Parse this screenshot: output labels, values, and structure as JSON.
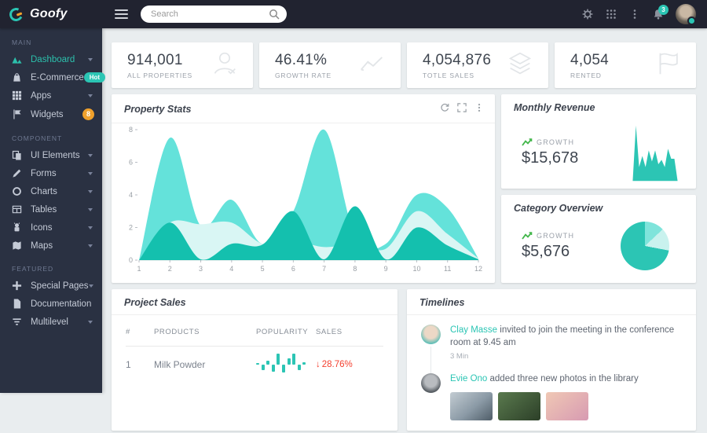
{
  "topbar": {
    "logo": "Goofy",
    "search_placeholder": "Search",
    "notification_count": "3"
  },
  "sidebar": {
    "sections": [
      {
        "label": "MAIN",
        "items": [
          {
            "label": "Dashboard",
            "icon": "chart",
            "active": true,
            "chevron": true
          },
          {
            "label": "E-Commerce",
            "icon": "bag",
            "badge": "Hot",
            "badge_type": "pill"
          },
          {
            "label": "Apps",
            "icon": "grid",
            "chevron": true
          },
          {
            "label": "Widgets",
            "icon": "flag",
            "badge": "8",
            "badge_type": "circle"
          }
        ]
      },
      {
        "label": "COMPONENT",
        "items": [
          {
            "label": "UI Elements",
            "icon": "copy",
            "chevron": true
          },
          {
            "label": "Forms",
            "icon": "pencil",
            "chevron": true
          },
          {
            "label": "Charts",
            "icon": "circle",
            "chevron": true
          },
          {
            "label": "Tables",
            "icon": "table",
            "chevron": true
          },
          {
            "label": "Icons",
            "icon": "robot",
            "chevron": true
          },
          {
            "label": "Maps",
            "icon": "map",
            "chevron": true
          }
        ]
      },
      {
        "label": "FEATURED",
        "items": [
          {
            "label": "Special Pages",
            "icon": "plus",
            "chevron": true
          },
          {
            "label": "Documentation",
            "icon": "doc"
          },
          {
            "label": "Multilevel",
            "icon": "filter",
            "chevron": true
          }
        ]
      }
    ]
  },
  "stats": [
    {
      "value": "914,001",
      "label": "ALL PROPERTIES",
      "icon": "user"
    },
    {
      "value": "46.41%",
      "label": "GROWTH RATE",
      "icon": "trend"
    },
    {
      "value": "4,054,876",
      "label": "TOTLE SALES",
      "icon": "layers"
    },
    {
      "value": "4,054",
      "label": "RENTED",
      "icon": "flagbig"
    }
  ],
  "property_stats": {
    "title": "Property Stats"
  },
  "monthly_revenue": {
    "title": "Monthly Revenue",
    "growth_label": "GROWTH",
    "amount": "$15,678"
  },
  "category_overview": {
    "title": "Category Overview",
    "growth_label": "GROWTH",
    "amount": "$5,676"
  },
  "project_sales": {
    "title": "Project Sales",
    "headers": [
      "#",
      "PRODUCTS",
      "POPULARITY",
      "SALES"
    ],
    "rows": [
      {
        "num": "1",
        "product": "Milk Powder",
        "sales": "28.76%",
        "direction": "down"
      }
    ]
  },
  "timelines": {
    "title": "Timelines",
    "items": [
      {
        "name": "Clay Masse",
        "text": "invited to join the meeting in the conference room at 9.45 am",
        "time": "3 Min",
        "photos": 0
      },
      {
        "name": "Evie Ono",
        "text": "added three new photos in the library",
        "time": "",
        "photos": 3
      }
    ]
  },
  "colors": {
    "accent": "#2bc5b4",
    "orange": "#f0a12c",
    "red": "#f4402f",
    "green": "#41b649"
  },
  "chart_data": [
    {
      "id": "property-stats",
      "type": "area",
      "title": "Property Stats",
      "x": [
        1,
        2,
        3,
        4,
        5,
        6,
        7,
        8,
        9,
        10,
        11,
        12
      ],
      "ylim": [
        0,
        8
      ],
      "yticks": [
        0,
        2,
        4,
        6,
        8
      ],
      "grid": false,
      "legend": "none",
      "series": [
        {
          "name": "series-light",
          "color": "#5ce0d8",
          "values": [
            0,
            7.5,
            2.1,
            3.7,
            1,
            3,
            8,
            1.5,
            1,
            4,
            3.2,
            0.1
          ]
        },
        {
          "name": "series-pale",
          "color": "#d9f6f4",
          "values": [
            0,
            2.3,
            2.2,
            2.3,
            1,
            1.2,
            0.8,
            1,
            0.7,
            3,
            1.6,
            0.1
          ]
        },
        {
          "name": "series-dark",
          "color": "#14c0ae",
          "values": [
            0,
            2.3,
            0.05,
            1,
            0.95,
            3,
            0.05,
            3.3,
            0.05,
            2,
            0.9,
            0.05
          ]
        }
      ]
    },
    {
      "id": "monthly-revenue-mini",
      "type": "area",
      "title": "Monthly Revenue",
      "color": "#2cc5b4",
      "ylim": [
        0,
        10
      ],
      "values": [
        0,
        10,
        2.5,
        4.5,
        2.5,
        5.5,
        3.5,
        5.5,
        3,
        3.8,
        2.5,
        5.8,
        4,
        4,
        0
      ]
    },
    {
      "id": "category-overview-pie",
      "type": "pie",
      "title": "Category Overview",
      "slices": [
        {
          "label": "segment-medium",
          "value": 13,
          "color": "#7fe4db"
        },
        {
          "label": "segment-pale",
          "value": 15,
          "color": "#c9f2ee"
        },
        {
          "label": "segment-main",
          "value": 72,
          "color": "#2cc5b4"
        }
      ]
    },
    {
      "id": "popularity-milk-powder",
      "type": "bar",
      "color": "#2cc5b4",
      "values": [
        0.5,
        -2,
        1.5,
        -2.5,
        4,
        -3,
        2.5,
        4,
        -2,
        1
      ]
    }
  ]
}
